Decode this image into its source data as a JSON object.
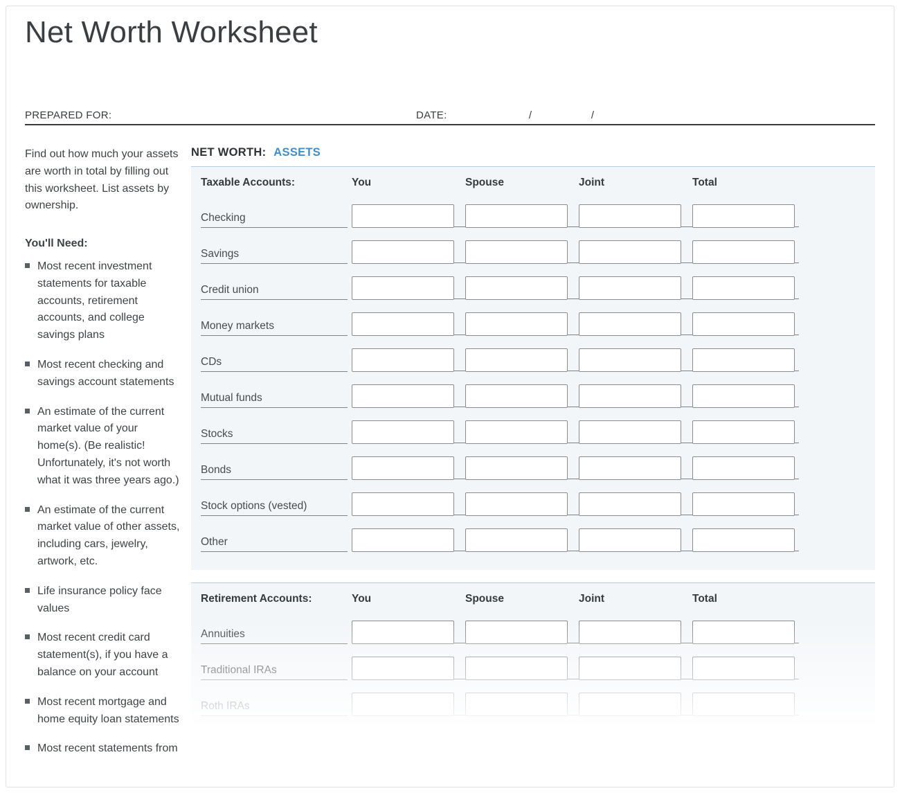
{
  "title": "Net Worth Worksheet",
  "prepared_for_label": "PREPARED FOR:",
  "date_label": "DATE:",
  "slash": "/",
  "intro": "Find out how much your assets are worth in total by filling out this worksheet. List assets by ownership.",
  "youll_need_title": "You'll Need",
  "youll_need_items": [
    "Most recent investment statements for taxable accounts, retirement accounts, and college savings plans",
    "Most recent checking and savings account statements",
    "An estimate of the current market value of your home(s). (Be realistic! Unfortunately, it's not worth what it was three years ago.)",
    "An estimate of the current market value of other assets, including cars, jewelry, artwork, etc.",
    "Life insurance policy face values",
    "Most recent credit card statement(s), if you have a balance on your account",
    "Most recent mortgage and home equity loan statements",
    "Most recent statements from"
  ],
  "section_heading_prefix": "NET WORTH:",
  "section_heading_accent": "ASSETS",
  "columns": [
    "You",
    "Spouse",
    "Joint",
    "Total"
  ],
  "panels": [
    {
      "name": "taxable",
      "title": "Taxable Accounts:",
      "rows": [
        "Checking",
        "Savings",
        "Credit union",
        "Money markets",
        "CDs",
        "Mutual funds",
        "Stocks",
        "Bonds",
        "Stock options (vested)",
        "Other"
      ]
    },
    {
      "name": "retirement",
      "title": "Retirement Accounts:",
      "rows": [
        "Annuities",
        "Traditional IRAs",
        "Roth IRAs"
      ]
    }
  ],
  "colors": {
    "accent": "#3b8fd0",
    "panel_bg": "#f3f6f9",
    "panel_top_border": "#b8cee0",
    "cell_border": "#8a8c8e",
    "rule": "#808285"
  }
}
